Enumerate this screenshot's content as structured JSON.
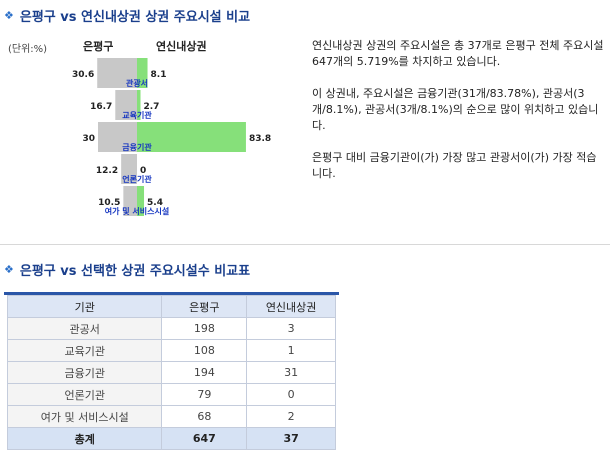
{
  "section1": {
    "title": "은평구 vs 연신내상권 상권 주요시설 비교"
  },
  "chart_unit": "(단위:%)",
  "chart_headers": {
    "left": "은평구",
    "right": "연신내상권"
  },
  "chart_data": {
    "type": "bar",
    "categories": [
      "관광서",
      "교육기관",
      "금융기관",
      "언론기관",
      "여가 및 서비스시설"
    ],
    "series": [
      {
        "name": "은평구",
        "values": [
          30.6,
          16.7,
          30,
          12.2,
          10.5
        ],
        "value_labels": [
          "30.6",
          "16.7",
          "30",
          "12.2",
          "10.5"
        ]
      },
      {
        "name": "연신내상권",
        "values": [
          8.1,
          2.7,
          83.8,
          0,
          5.4
        ],
        "value_labels": [
          "8.1",
          "2.7",
          "83.8",
          "0",
          "5.4"
        ]
      }
    ],
    "colors": {
      "left": "#c8c8c8",
      "right": "#86e07a",
      "category": "#1535c0"
    }
  },
  "description": [
    "연신내상권 상권의 주요시설은 총 37개로 은평구 전체 주요시설 647개의 5.719%를 차지하고 있습니다.",
    "이 상권내, 주요시설은 금융기관(31개/83.78%), 관공서(3개/8.1%), 관공서(3개/8.1%)의 순으로 많이 위치하고 있습니다.",
    "은평구 대비 금융기관이(가) 가장 많고 관광서이(가) 가장 적습니다."
  ],
  "section2": {
    "title": "은평구 vs 선택한 상권 주요시설수 비교표"
  },
  "table": {
    "headers": [
      "기관",
      "은평구",
      "연신내상권"
    ],
    "rows": [
      [
        "관공서",
        "198",
        "3"
      ],
      [
        "교육기관",
        "108",
        "1"
      ],
      [
        "금융기관",
        "194",
        "31"
      ],
      [
        "언론기관",
        "79",
        "0"
      ],
      [
        "여가 및 서비스시설",
        "68",
        "2"
      ]
    ],
    "total": [
      "총계",
      "647",
      "37"
    ]
  }
}
